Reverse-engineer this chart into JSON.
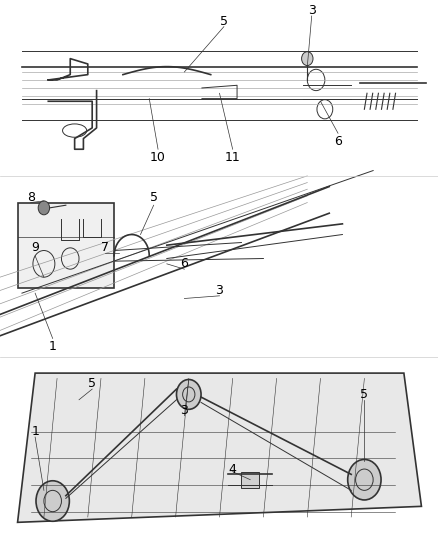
{
  "bg_color": "#ffffff",
  "line_color": "#333333",
  "label_color": "#000000",
  "fontsize": 9
}
